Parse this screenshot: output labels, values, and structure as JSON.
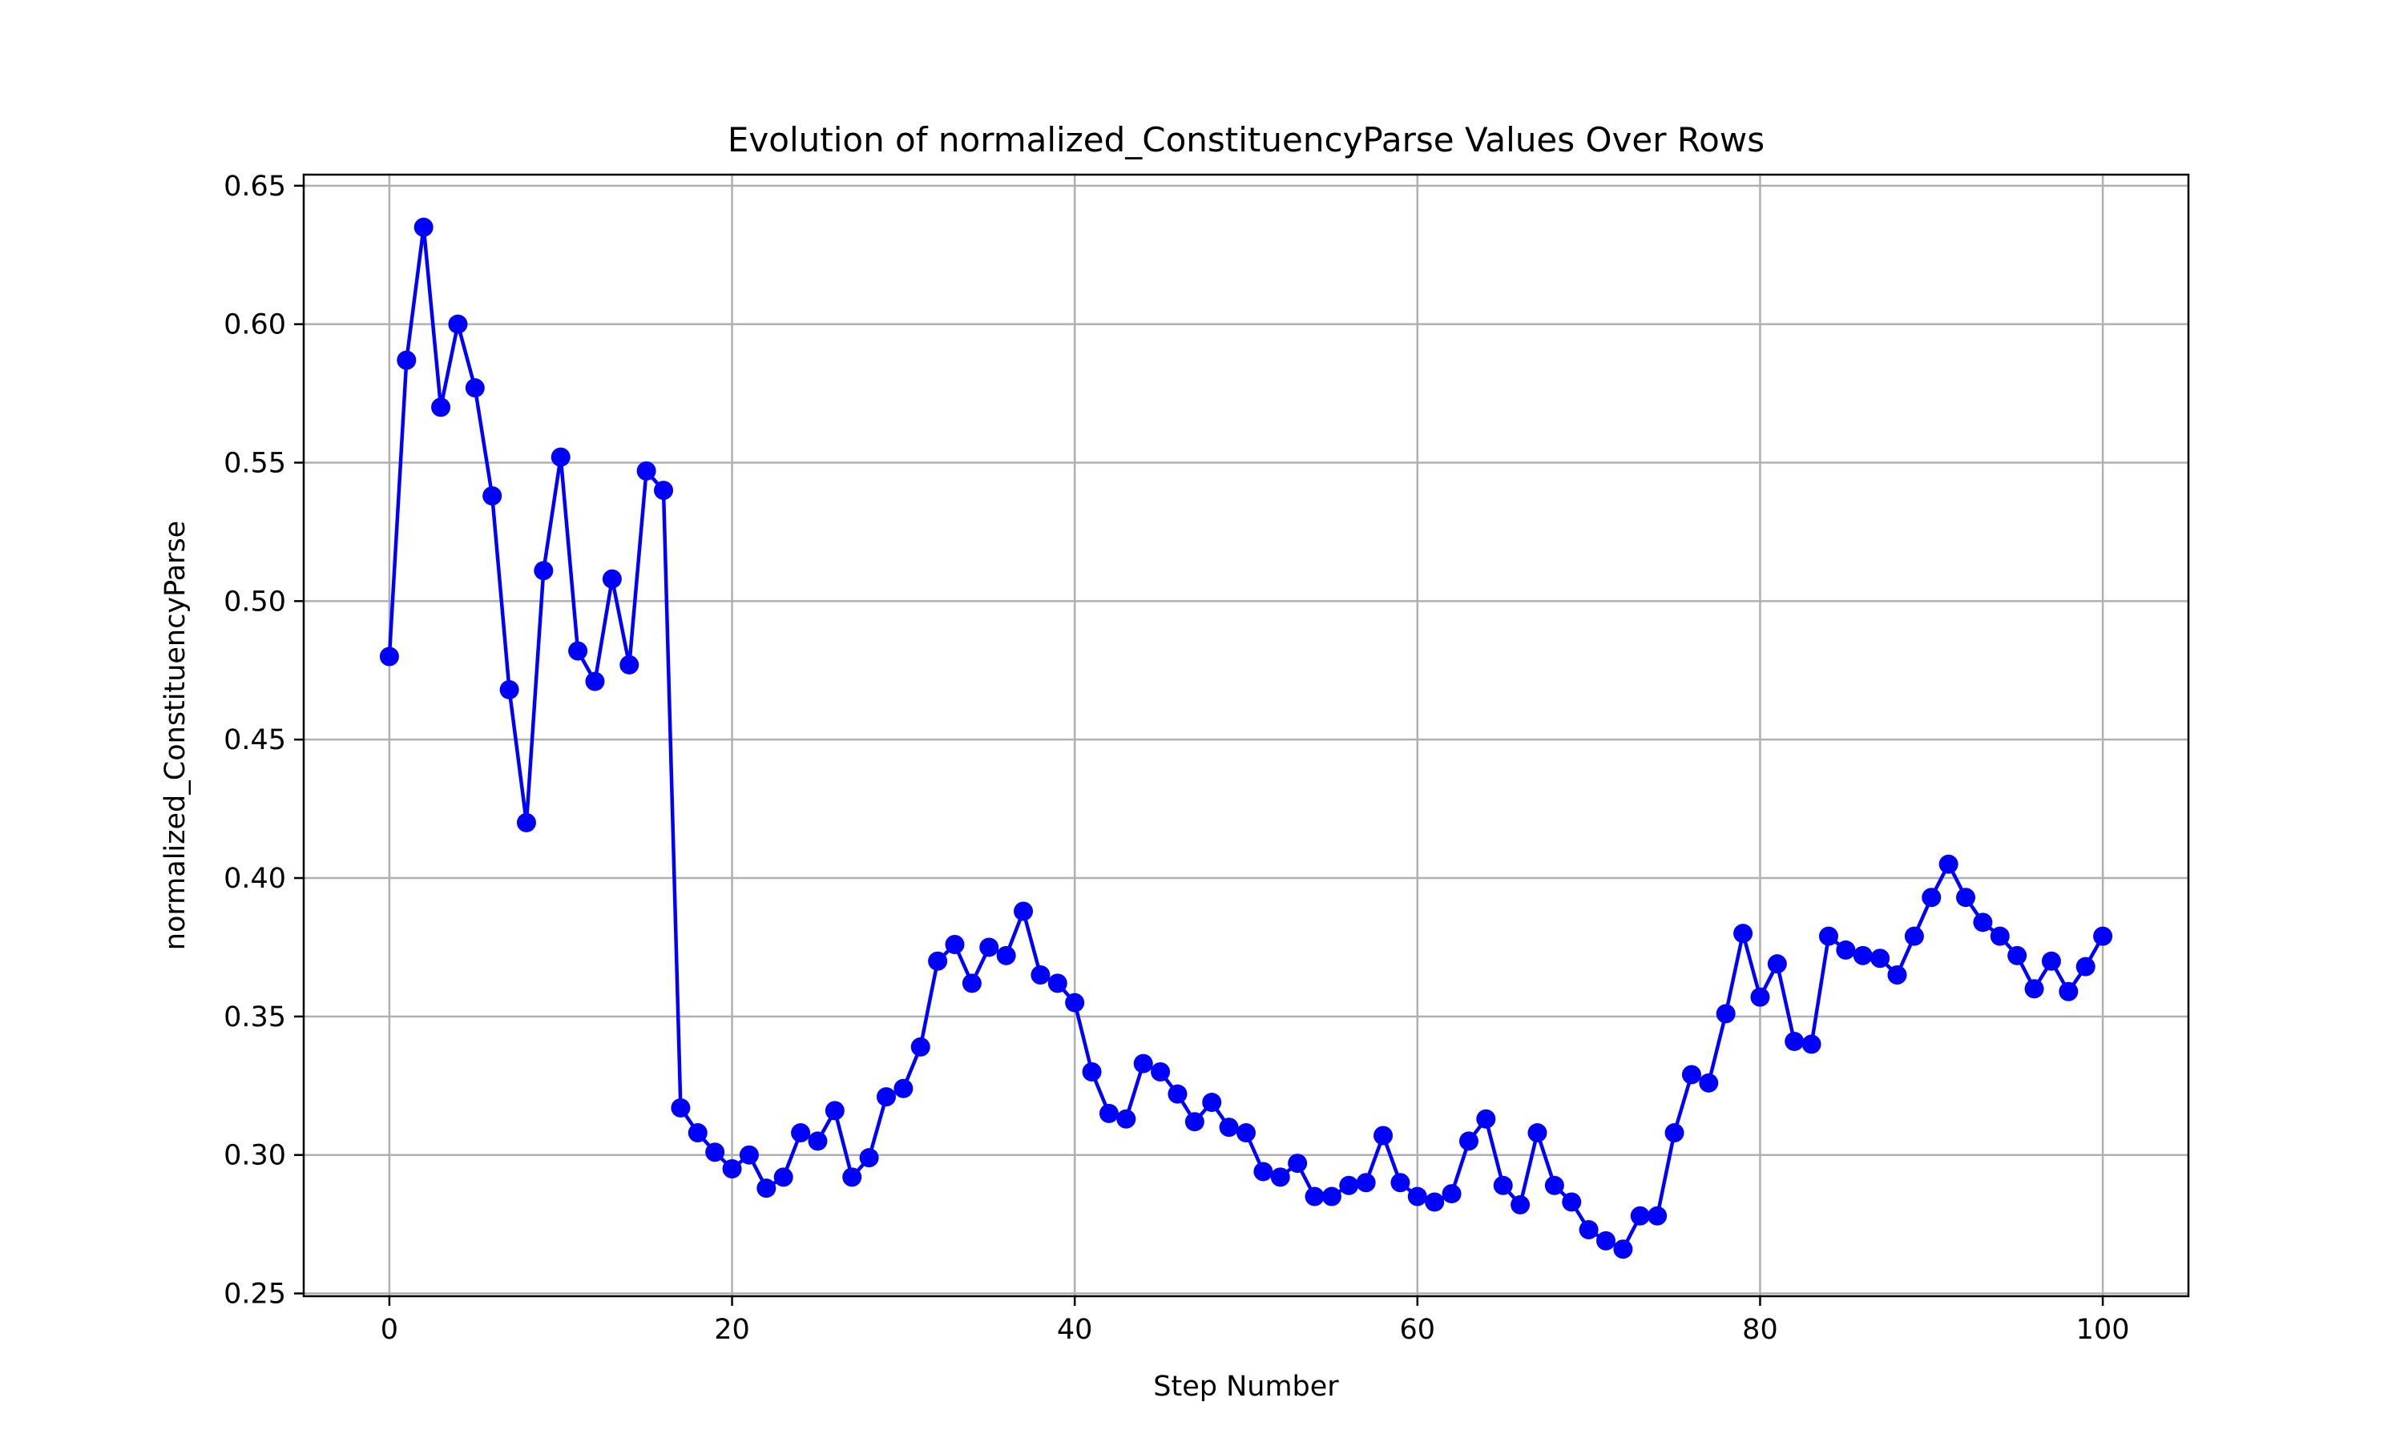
{
  "chart_data": {
    "type": "line",
    "title": "Evolution of normalized_ConstituencyParse Values Over Rows",
    "xlabel": "Step Number",
    "ylabel": "normalized_ConstituencyParse",
    "xlim": [
      -5,
      105
    ],
    "ylim": [
      0.249,
      0.654
    ],
    "xticks": [
      0,
      20,
      40,
      60,
      80,
      100
    ],
    "xtick_labels": [
      "0",
      "20",
      "40",
      "60",
      "80",
      "100"
    ],
    "yticks": [
      0.25,
      0.3,
      0.35,
      0.4,
      0.45,
      0.5,
      0.55,
      0.6,
      0.65
    ],
    "ytick_labels": [
      "0.25",
      "0.30",
      "0.35",
      "0.40",
      "0.45",
      "0.50",
      "0.55",
      "0.60",
      "0.65"
    ],
    "grid": true,
    "legend": "none",
    "color": "#0000ff",
    "x": [
      0,
      1,
      2,
      3,
      4,
      5,
      6,
      7,
      8,
      9,
      10,
      11,
      12,
      13,
      14,
      15,
      16,
      17,
      18,
      19,
      20,
      21,
      22,
      23,
      24,
      25,
      26,
      27,
      28,
      29,
      30,
      31,
      32,
      33,
      34,
      35,
      36,
      37,
      38,
      39,
      40,
      41,
      42,
      43,
      44,
      45,
      46,
      47,
      48,
      49,
      50,
      51,
      52,
      53,
      54,
      55,
      56,
      57,
      58,
      59,
      60,
      61,
      62,
      63,
      64,
      65,
      66,
      67,
      68,
      69,
      70,
      71,
      72,
      73,
      74,
      75,
      76,
      77,
      78,
      79,
      80,
      81,
      82,
      83,
      84,
      85,
      86,
      87,
      88,
      89,
      90,
      91,
      92,
      93,
      94,
      95,
      96,
      97,
      98,
      99,
      100
    ],
    "y": [
      0.48,
      0.587,
      0.635,
      0.57,
      0.6,
      0.577,
      0.538,
      0.468,
      0.42,
      0.511,
      0.552,
      0.482,
      0.471,
      0.508,
      0.477,
      0.547,
      0.54,
      0.317,
      0.308,
      0.301,
      0.295,
      0.3,
      0.288,
      0.292,
      0.308,
      0.305,
      0.316,
      0.292,
      0.299,
      0.321,
      0.324,
      0.339,
      0.37,
      0.376,
      0.362,
      0.375,
      0.372,
      0.388,
      0.365,
      0.362,
      0.355,
      0.33,
      0.315,
      0.313,
      0.333,
      0.33,
      0.322,
      0.312,
      0.319,
      0.31,
      0.308,
      0.294,
      0.292,
      0.297,
      0.285,
      0.285,
      0.289,
      0.29,
      0.307,
      0.29,
      0.285,
      0.283,
      0.286,
      0.305,
      0.313,
      0.289,
      0.282,
      0.308,
      0.289,
      0.283,
      0.273,
      0.269,
      0.266,
      0.278,
      0.278,
      0.308,
      0.329,
      0.326,
      0.351,
      0.38,
      0.357,
      0.369,
      0.341,
      0.34,
      0.379,
      0.374,
      0.372,
      0.371,
      0.365,
      0.379,
      0.393,
      0.405,
      0.393,
      0.384,
      0.379,
      0.372,
      0.36,
      0.37,
      0.359,
      0.368,
      0.379
    ]
  }
}
